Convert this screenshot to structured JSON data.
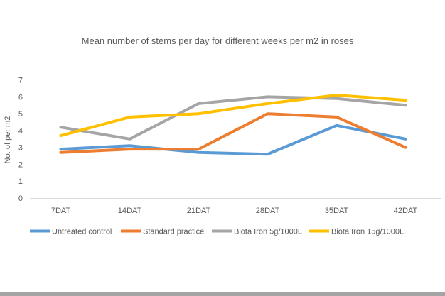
{
  "chart_data": {
    "type": "line",
    "title": "Mean number of stems per day for different weeks per m2 in roses",
    "xlabel": "",
    "ylabel": "No. of per m2",
    "categories": [
      "7DAT",
      "14DAT",
      "21DAT",
      "28DAT",
      "35DAT",
      "42DAT"
    ],
    "series": [
      {
        "name": "Untreated control",
        "color": "#5B9BD5",
        "values": [
          2.9,
          3.1,
          2.7,
          2.6,
          4.3,
          3.5
        ]
      },
      {
        "name": "Standard practice",
        "color": "#ED7D31",
        "values": [
          2.7,
          2.9,
          2.9,
          5.0,
          4.8,
          3.0
        ]
      },
      {
        "name": "Biota Iron 5g/1000L",
        "color": "#A5A5A5",
        "values": [
          4.2,
          3.5,
          5.6,
          6.0,
          5.9,
          5.5
        ]
      },
      {
        "name": "Biota Iron 15g/1000L",
        "color": "#FFC000",
        "values": [
          3.7,
          4.8,
          5.0,
          5.6,
          6.1,
          5.8
        ]
      }
    ],
    "ylim": [
      0,
      7
    ],
    "yticks": [
      "0",
      "1",
      "2",
      "3",
      "4",
      "5",
      "6",
      "7"
    ],
    "grid": false,
    "legend_position": "bottom",
    "colors": {
      "text": "#595959",
      "axis_line": "#D9D9D9"
    }
  }
}
